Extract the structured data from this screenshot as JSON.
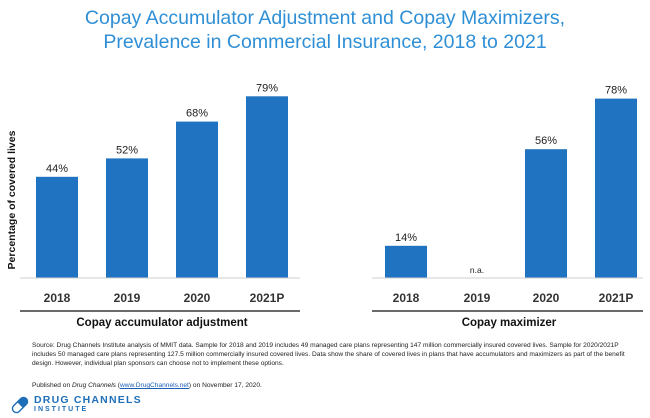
{
  "title_line1": "Copay Accumulator Adjustment and Copay Maximizers,",
  "title_line2": "Prevalence in Commercial Insurance, 2018 to 2021",
  "chart_data": [
    {
      "type": "bar",
      "xlabel": "Copay accumulator adjustment",
      "ylabel": "Percentage of covered lives",
      "categories": [
        "2018",
        "2019",
        "2020",
        "2021P"
      ],
      "values": [
        44,
        52,
        68,
        79
      ],
      "labels": [
        "44%",
        "52%",
        "68%",
        "79%"
      ],
      "ylim": [
        0,
        100
      ],
      "grid": false,
      "bar_color": "#1F73C0"
    },
    {
      "type": "bar",
      "xlabel": "Copay maximizer",
      "ylabel": "Percentage of covered lives",
      "categories": [
        "2018",
        "2019",
        "2020",
        "2021P"
      ],
      "values": [
        14,
        null,
        56,
        78
      ],
      "labels": [
        "14%",
        "n.a.",
        "56%",
        "78%"
      ],
      "ylim": [
        0,
        100
      ],
      "grid": false,
      "bar_color": "#1F73C0"
    }
  ],
  "note": "Source: Drug Channels Institute analysis of MMIT data. Sample for 2018 and 2019 includes 49 managed care plans representing 147 million commercially insured covered lives. Sample for 2020/2021P includes 50 managed care plans representing 127.5 million commercially insured covered lives. Data show the share of covered lives in plans that have accumulators and maximizers as part of the benefit design. However, individual plan sponsors can choose not to implement these options.",
  "published": {
    "prefix": "Published on ",
    "site_italic": "Drug Channels",
    "open_paren": " (",
    "link": "www.DrugChannels.net",
    "suffix": ") on November 17, 2020."
  },
  "logo": {
    "line1": "DRUG CHANNELS",
    "line2": "INSTITUTE",
    "color": "#1E6FB8"
  }
}
